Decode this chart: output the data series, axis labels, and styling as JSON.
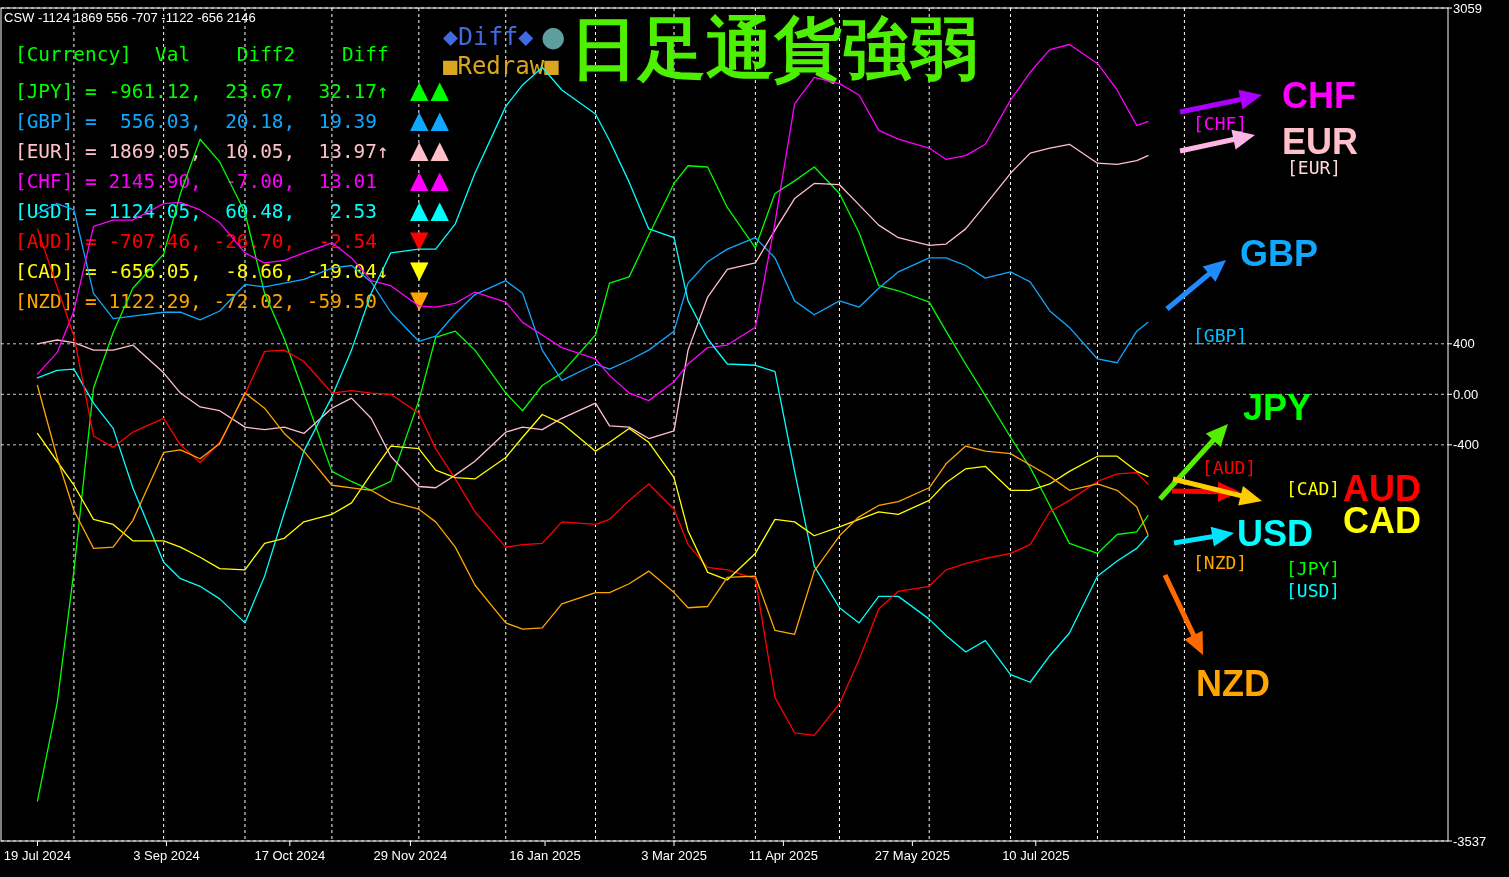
{
  "chart_data": {
    "type": "line",
    "title": "日足通貨強弱",
    "x": [
      "2024-07-19",
      "2024-07-26",
      "2024-08-01",
      "2024-08-08",
      "2024-08-15",
      "2024-08-22",
      "2024-09-02",
      "2024-09-08",
      "2024-09-15",
      "2024-09-22",
      "2024-10-01",
      "2024-10-08",
      "2024-10-15",
      "2024-10-22",
      "2024-11-01",
      "2024-11-08",
      "2024-11-15",
      "2024-11-22",
      "2024-12-02",
      "2024-12-08",
      "2024-12-15",
      "2024-12-22",
      "2025-01-02",
      "2025-01-08",
      "2025-01-15",
      "2025-01-22",
      "2025-02-03",
      "2025-02-08",
      "2025-02-15",
      "2025-02-22",
      "2025-03-03",
      "2025-03-08",
      "2025-03-15",
      "2025-03-22",
      "2025-04-01",
      "2025-04-08",
      "2025-04-15",
      "2025-04-22",
      "2025-05-01",
      "2025-05-08",
      "2025-05-15",
      "2025-05-22",
      "2025-06-02",
      "2025-06-08",
      "2025-06-15",
      "2025-06-22",
      "2025-07-01",
      "2025-07-08",
      "2025-07-15",
      "2025-07-22",
      "2025-08-01",
      "2025-08-08",
      "2025-08-15",
      "2025-08-19"
    ],
    "series": [
      {
        "name": "JPY",
        "color": "#00ff00",
        "values": [
          -3220,
          -2450,
          -1400,
          50,
          490,
          840,
          1110,
          1590,
          2020,
          1840,
          1440,
          800,
          440,
          10,
          -610,
          -690,
          -760,
          -690,
          -50,
          450,
          500,
          350,
          10,
          -130,
          70,
          170,
          470,
          880,
          930,
          1260,
          1670,
          1810,
          1800,
          1480,
          1160,
          1590,
          1690,
          1800,
          1590,
          1280,
          860,
          820,
          730,
          500,
          240,
          -10,
          -340,
          -580,
          -880,
          -1180,
          -1260,
          -1110,
          -1090,
          -960
        ]
      },
      {
        "name": "GBP",
        "color": "#10a8ff",
        "values": [
          1430,
          1510,
          1460,
          800,
          600,
          620,
          650,
          650,
          590,
          660,
          870,
          850,
          880,
          910,
          1000,
          1020,
          890,
          650,
          420,
          460,
          640,
          790,
          900,
          800,
          350,
          110,
          240,
          200,
          270,
          350,
          500,
          880,
          1050,
          1150,
          1240,
          1080,
          740,
          630,
          740,
          690,
          840,
          970,
          1080,
          1080,
          1020,
          920,
          970,
          890,
          660,
          530,
          280,
          250,
          500,
          570
        ]
      },
      {
        "name": "EUR",
        "color": "#ffc0cb",
        "values": [
          400,
          430,
          410,
          350,
          350,
          390,
          170,
          10,
          -100,
          -130,
          -260,
          -280,
          -260,
          -310,
          -110,
          -30,
          -190,
          -490,
          -730,
          -740,
          -640,
          -530,
          -300,
          -260,
          -280,
          -190,
          -70,
          -250,
          -260,
          -350,
          -290,
          350,
          770,
          990,
          1040,
          1300,
          1550,
          1670,
          1660,
          1500,
          1340,
          1240,
          1180,
          1190,
          1310,
          1500,
          1750,
          1910,
          1950,
          1980,
          1830,
          1820,
          1850,
          1890
        ]
      },
      {
        "name": "CHF",
        "color": "#ff00ff",
        "values": [
          160,
          330,
          660,
          1330,
          1380,
          1380,
          1510,
          1520,
          1460,
          1360,
          1120,
          1040,
          1060,
          1120,
          1200,
          1080,
          900,
          860,
          700,
          690,
          720,
          810,
          730,
          570,
          470,
          370,
          280,
          150,
          10,
          -50,
          100,
          240,
          370,
          390,
          530,
          1360,
          2300,
          2510,
          2460,
          2370,
          2090,
          2020,
          1950,
          1860,
          1890,
          1980,
          2330,
          2550,
          2730,
          2770,
          2620,
          2410,
          2130,
          2160
        ]
      },
      {
        "name": "USD",
        "color": "#00ffff",
        "values": [
          130,
          190,
          200,
          -70,
          -270,
          -740,
          -1330,
          -1460,
          -1520,
          -1620,
          -1810,
          -1440,
          -940,
          -450,
          -20,
          350,
          800,
          1120,
          1150,
          1150,
          1350,
          1750,
          2280,
          2450,
          2590,
          2410,
          2220,
          2010,
          1680,
          1310,
          1240,
          740,
          440,
          240,
          230,
          180,
          -610,
          -1360,
          -1690,
          -1810,
          -1600,
          -1600,
          -1780,
          -1910,
          -2040,
          -1950,
          -2220,
          -2280,
          -2070,
          -1890,
          -1440,
          -1320,
          -1220,
          -1120
        ]
      },
      {
        "name": "AUD",
        "color": "#ff0000",
        "values": [
          1310,
          850,
          460,
          -330,
          -420,
          -300,
          -190,
          -400,
          -540,
          -380,
          0,
          340,
          350,
          260,
          10,
          30,
          10,
          0,
          -150,
          -430,
          -670,
          -930,
          -1210,
          -1190,
          -1180,
          -1010,
          -1030,
          -990,
          -840,
          -710,
          -910,
          -1190,
          -1370,
          -1390,
          -1460,
          -2400,
          -2680,
          -2700,
          -2450,
          -2100,
          -1700,
          -1560,
          -1520,
          -1390,
          -1340,
          -1300,
          -1260,
          -1190,
          -930,
          -840,
          -690,
          -630,
          -620,
          -710
        ]
      },
      {
        "name": "CAD",
        "color": "#ffff00",
        "values": [
          -310,
          -530,
          -720,
          -990,
          -1030,
          -1160,
          -1160,
          -1210,
          -1290,
          -1380,
          -1390,
          -1180,
          -1140,
          -1010,
          -950,
          -860,
          -630,
          -410,
          -430,
          -600,
          -660,
          -670,
          -500,
          -340,
          -160,
          -230,
          -450,
          -380,
          -270,
          -380,
          -660,
          -1080,
          -1410,
          -1470,
          -1260,
          -990,
          -1010,
          -1120,
          -1050,
          -990,
          -930,
          -950,
          -840,
          -700,
          -590,
          -570,
          -760,
          -760,
          -710,
          -610,
          -490,
          -490,
          -610,
          -650
        ]
      },
      {
        "name": "NZD",
        "color": "#ffa500",
        "values": [
          70,
          -500,
          -920,
          -1220,
          -1210,
          -1000,
          -460,
          -440,
          -510,
          -390,
          10,
          -110,
          -310,
          -450,
          -720,
          -740,
          -760,
          -850,
          -910,
          -1010,
          -1210,
          -1510,
          -1810,
          -1860,
          -1850,
          -1660,
          -1570,
          -1570,
          -1500,
          -1400,
          -1570,
          -1690,
          -1680,
          -1450,
          -1440,
          -1870,
          -1900,
          -1400,
          -1120,
          -970,
          -880,
          -850,
          -740,
          -550,
          -410,
          -450,
          -470,
          -560,
          -650,
          -760,
          -710,
          -760,
          -890,
          -1110
        ]
      }
    ],
    "xlim": [
      "2024-07-06",
      "2025-12-04"
    ],
    "xticks": [
      {
        "value": "2024-07-19",
        "label": "19 Jul 2024"
      },
      {
        "value": "2024-09-03",
        "label": "3 Sep 2024"
      },
      {
        "value": "2024-10-17",
        "label": "17 Oct 2024"
      },
      {
        "value": "2024-11-29",
        "label": "29 Nov 2024"
      },
      {
        "value": "2025-01-16",
        "label": "16 Jan 2025"
      },
      {
        "value": "2025-03-03",
        "label": "3 Mar 2025"
      },
      {
        "value": "2025-04-11",
        "label": "11 Apr 2025"
      },
      {
        "value": "2025-05-27",
        "label": "27 May 2025"
      },
      {
        "value": "2025-07-10",
        "label": "10 Jul 2025"
      }
    ],
    "ylim": [
      -3537,
      3059
    ],
    "yticks": [
      3059,
      400,
      {
        "value": 0,
        "label": "0.00"
      },
      -400,
      -3537
    ],
    "grid": "y",
    "ref_lines": [
      {
        "axis": "x",
        "value": "2024-08-01",
        "color": "#ffffff",
        "line_style": "dashed"
      },
      {
        "axis": "x",
        "value": "2024-09-02",
        "color": "#ffffff",
        "line_style": "dashed"
      },
      {
        "axis": "x",
        "value": "2024-10-01",
        "color": "#ffffff",
        "line_style": "dashed"
      },
      {
        "axis": "x",
        "value": "2024-11-01",
        "color": "#ffffff",
        "line_style": "dashed"
      },
      {
        "axis": "x",
        "value": "2024-12-02",
        "color": "#ffffff",
        "line_style": "dashed"
      },
      {
        "axis": "x",
        "value": "2025-01-02",
        "color": "#ffffff",
        "line_style": "dashed"
      },
      {
        "axis": "x",
        "value": "2025-02-03",
        "color": "#ffffff",
        "line_style": "dashed"
      },
      {
        "axis": "x",
        "value": "2025-03-03",
        "color": "#ffffff",
        "line_style": "dashed"
      },
      {
        "axis": "x",
        "value": "2025-04-01",
        "color": "#ffffff",
        "line_style": "dashed"
      },
      {
        "axis": "x",
        "value": "2025-05-01",
        "color": "#ffffff",
        "line_style": "dashed"
      },
      {
        "axis": "x",
        "value": "2025-06-02",
        "color": "#ffffff",
        "line_style": "dashed"
      },
      {
        "axis": "x",
        "value": "2025-07-01",
        "color": "#ffffff",
        "line_style": "dashed"
      },
      {
        "axis": "x",
        "value": "2025-08-01",
        "color": "#ffffff",
        "line_style": "dashed"
      },
      {
        "axis": "x",
        "value": "2025-09-01",
        "color": "#ffffff",
        "line_style": "dashed"
      }
    ],
    "annotations": [
      "CSW -1124 1869 556 -707 -1122 -656 2146",
      "[Currency]  Val    Diff2    Diff",
      "[JPY] = -961.12,  23.67,  32.17↑",
      "[GBP] =  556.03,  20.18,  19.39",
      "[EUR] = 1869.05,  10.05,  13.97↑",
      "[CHF] = 2145.90,  -7.00,  13.01",
      "[USD] = 1124.05,  60.48,   2.53",
      "[AUD] = -707.46, -26.70,  -2.54",
      "[CAD] = -656.05,  -8.66, -19.04↓",
      "[NZD] = 1122.29, -72.02, -59.50",
      "▲▲",
      "▲▲",
      "▲▲",
      "▲▲",
      "▲▲",
      "▼",
      "▼",
      "▼",
      "◆Diff◆",
      "●",
      "■Redraw■",
      "[CHF]",
      "[EUR]",
      "[GBP]",
      "[CAD]",
      "[AUD]",
      "[JPY]",
      "[USD]",
      "[NZD]"
    ]
  }
}
